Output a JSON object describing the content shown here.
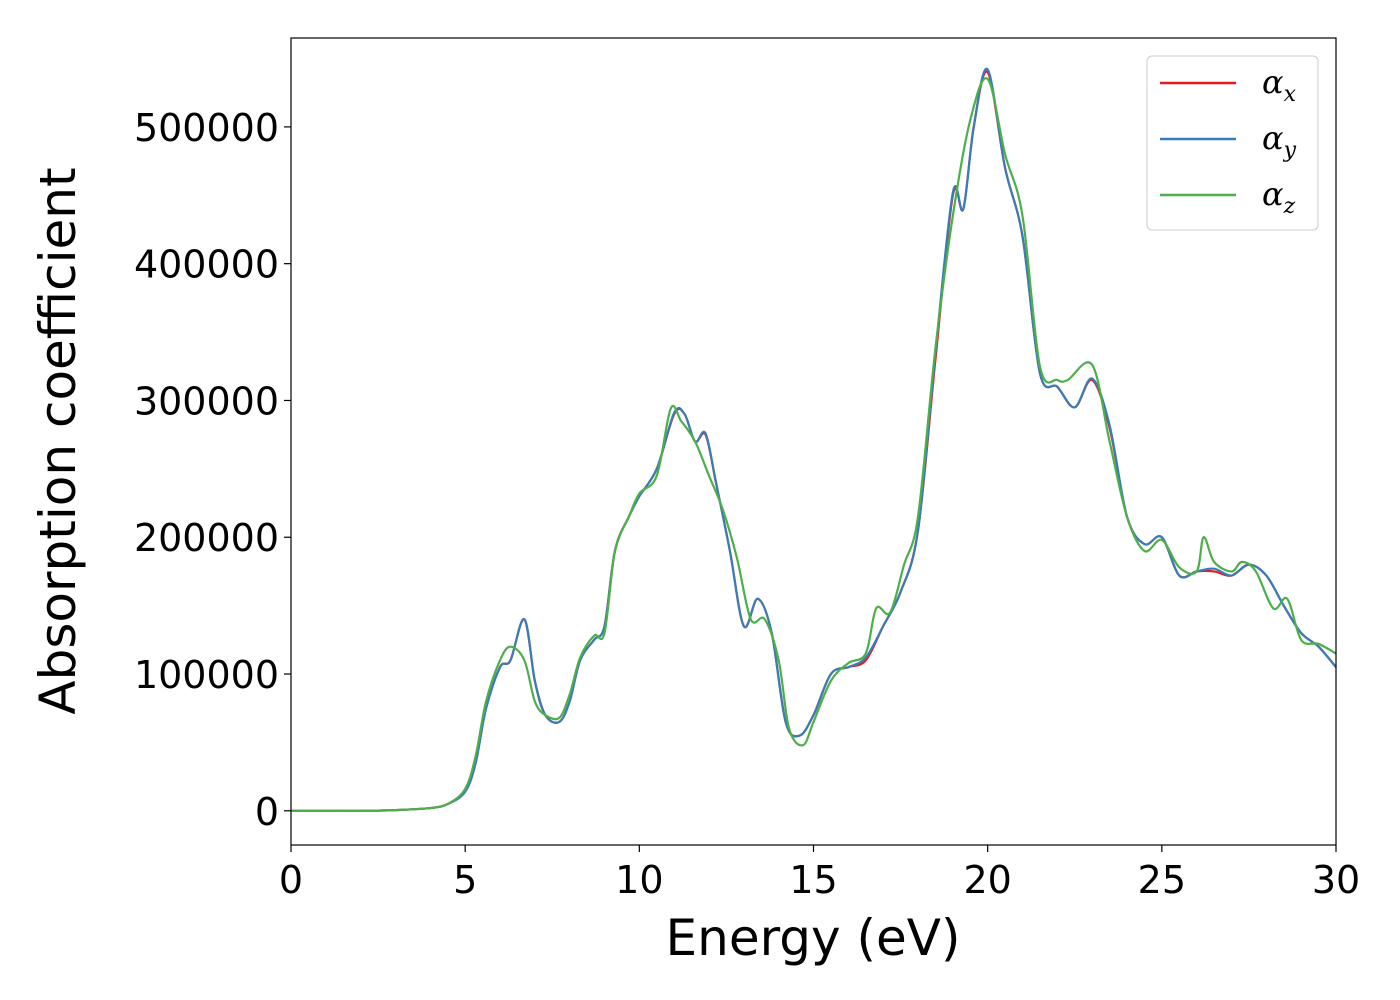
{
  "chart_data": {
    "type": "line",
    "title": "",
    "xlabel": "Energy (eV)",
    "ylabel": "Absorption coefficient",
    "xlim": [
      0,
      30
    ],
    "ylim": [
      -25000,
      565000
    ],
    "xticks": [
      0,
      5,
      10,
      15,
      20,
      25,
      30
    ],
    "xtick_labels": [
      "0",
      "5",
      "10",
      "15",
      "20",
      "25",
      "30"
    ],
    "yticks": [
      0,
      100000,
      200000,
      300000,
      400000,
      500000
    ],
    "ytick_labels": [
      "0",
      "100000",
      "200000",
      "300000",
      "400000",
      "500000"
    ],
    "grid": false,
    "legend_position": "top-right",
    "series": [
      {
        "name": "α",
        "subscript": "x",
        "color": "#e41a1c",
        "x": [
          0,
          1,
          2,
          3,
          4,
          4.5,
          5,
          5.3,
          5.6,
          6,
          6.3,
          6.7,
          7,
          7.3,
          7.7,
          8,
          8.3,
          8.7,
          9,
          9.3,
          9.7,
          10,
          10.5,
          11,
          11.3,
          11.6,
          11.9,
          12.2,
          12.6,
          13,
          13.4,
          13.8,
          14.2,
          14.6,
          15,
          15.5,
          16,
          16.5,
          17,
          17.5,
          18,
          18.5,
          19,
          19.3,
          19.6,
          20,
          20.5,
          21,
          21.5,
          22,
          22.5,
          23,
          23.5,
          24,
          24.5,
          25,
          25.5,
          26,
          26.5,
          27,
          27.5,
          28,
          28.5,
          29,
          29.5,
          30
        ],
        "y": [
          0,
          0,
          0,
          500,
          2000,
          5000,
          14000,
          35000,
          75000,
          105000,
          110000,
          140000,
          95000,
          70000,
          65000,
          80000,
          110000,
          125000,
          135000,
          190000,
          215000,
          230000,
          250000,
          290000,
          290000,
          270000,
          275000,
          240000,
          190000,
          135000,
          155000,
          130000,
          65000,
          55000,
          70000,
          100000,
          105000,
          110000,
          135000,
          160000,
          205000,
          330000,
          450000,
          440000,
          500000,
          540000,
          470000,
          420000,
          320000,
          310000,
          295000,
          315000,
          280000,
          215000,
          195000,
          200000,
          172000,
          175000,
          175000,
          172000,
          180000,
          172000,
          150000,
          130000,
          120000,
          105000
        ]
      },
      {
        "name": "α",
        "subscript": "y",
        "color": "#377eb8",
        "x": [
          0,
          1,
          2,
          3,
          4,
          4.5,
          5,
          5.3,
          5.6,
          6,
          6.3,
          6.7,
          7,
          7.3,
          7.7,
          8,
          8.3,
          8.7,
          9,
          9.3,
          9.7,
          10,
          10.5,
          11,
          11.3,
          11.6,
          11.9,
          12.2,
          12.6,
          13,
          13.4,
          13.8,
          14.2,
          14.6,
          15,
          15.5,
          16,
          16.5,
          17,
          17.5,
          18,
          18.5,
          19,
          19.3,
          19.6,
          20,
          20.5,
          21,
          21.5,
          22,
          22.5,
          23,
          23.5,
          24,
          24.5,
          25,
          25.5,
          26,
          26.5,
          27,
          27.5,
          28,
          28.5,
          29,
          29.5,
          30
        ],
        "y": [
          0,
          0,
          0,
          500,
          2000,
          5000,
          14000,
          35000,
          75000,
          105000,
          110000,
          140000,
          95000,
          70000,
          65000,
          80000,
          110000,
          125000,
          135000,
          190000,
          215000,
          230000,
          250000,
          291000,
          290000,
          270000,
          276000,
          240000,
          190000,
          135000,
          155000,
          130000,
          65000,
          55000,
          70000,
          100000,
          105000,
          112000,
          135000,
          160000,
          205000,
          335000,
          452000,
          440000,
          500000,
          542000,
          470000,
          420000,
          320000,
          310000,
          295000,
          316000,
          282000,
          215000,
          195000,
          200000,
          172000,
          175000,
          177000,
          172000,
          180000,
          172000,
          150000,
          130000,
          120000,
          105000
        ]
      },
      {
        "name": "α",
        "subscript": "z",
        "color": "#4daf4a",
        "x": [
          0,
          1,
          2,
          3,
          4,
          4.5,
          5,
          5.3,
          5.6,
          6,
          6.3,
          6.7,
          7,
          7.3,
          7.7,
          8,
          8.3,
          8.7,
          9,
          9.3,
          9.7,
          10,
          10.5,
          10.9,
          11.2,
          11.6,
          12,
          12.4,
          12.8,
          13.2,
          13.6,
          14,
          14.3,
          14.7,
          15,
          15.5,
          16,
          16.5,
          16.8,
          17.2,
          17.6,
          18,
          18.5,
          19,
          19.5,
          20,
          20.5,
          21,
          21.5,
          22,
          22.3,
          23,
          23.5,
          24,
          24.5,
          25,
          25.5,
          26,
          26.2,
          26.5,
          27,
          27.3,
          27.7,
          28.2,
          28.6,
          29,
          29.5,
          30
        ],
        "y": [
          0,
          0,
          0,
          500,
          2000,
          5000,
          16000,
          40000,
          80000,
          110000,
          120000,
          110000,
          80000,
          70000,
          68000,
          85000,
          112000,
          128000,
          130000,
          190000,
          215000,
          232000,
          245000,
          294000,
          285000,
          270000,
          245000,
          220000,
          185000,
          140000,
          140000,
          110000,
          60000,
          48000,
          65000,
          95000,
          108000,
          115000,
          148000,
          145000,
          180000,
          215000,
          338000,
          435000,
          505000,
          535000,
          480000,
          435000,
          325000,
          315000,
          315000,
          326000,
          270000,
          215000,
          190000,
          198000,
          178000,
          175000,
          200000,
          182000,
          175000,
          182000,
          175000,
          148000,
          155000,
          125000,
          122000,
          115000
        ]
      }
    ]
  }
}
